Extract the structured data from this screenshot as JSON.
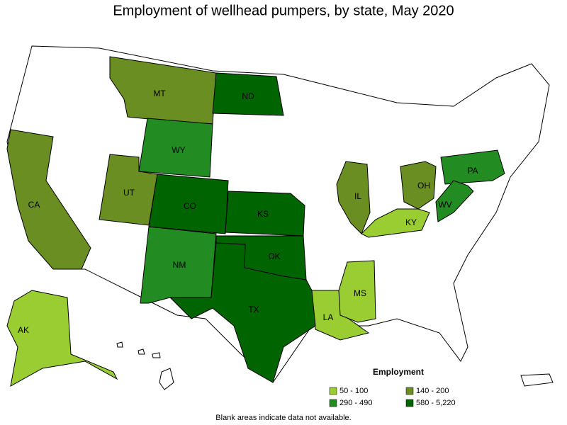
{
  "title": "Employment of wellhead pumpers, by state, May 2020",
  "legend": {
    "title": "Employment",
    "items": [
      {
        "label": "50 - 100",
        "color": "#9acd32",
        "states": [
          "KY",
          "LA",
          "MS",
          "AK"
        ]
      },
      {
        "label": "140 - 200",
        "color": "#6b8e23",
        "states": [
          "MT",
          "UT",
          "CA",
          "IL",
          "OH"
        ]
      },
      {
        "label": "290 - 490",
        "color": "#228b22",
        "states": [
          "WY",
          "NM",
          "PA",
          "WV"
        ]
      },
      {
        "label": "580 - 5,220",
        "color": "#006400",
        "states": [
          "ND",
          "CO",
          "KS",
          "OK",
          "TX"
        ]
      }
    ]
  },
  "footnote": "Blank areas indicate data not available."
}
